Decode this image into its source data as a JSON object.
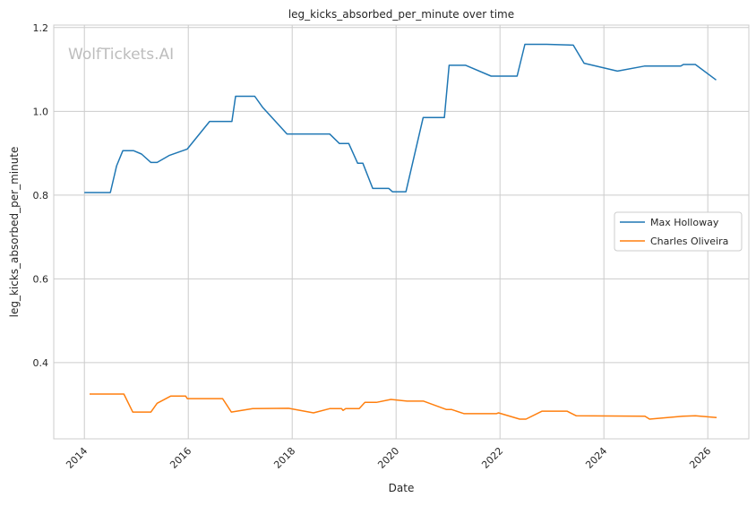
{
  "chart_data": {
    "type": "line",
    "title": "leg_kicks_absorbed_per_minute over time",
    "xlabel": "Date",
    "ylabel": "leg_kicks_absorbed_per_minute",
    "xlim": [
      2013.41,
      2026.79
    ],
    "ylim": [
      0.218,
      1.206
    ],
    "x_ticks": [
      2014,
      2016,
      2018,
      2020,
      2022,
      2024,
      2026
    ],
    "x_tick_labels": [
      "2014",
      "2016",
      "2018",
      "2020",
      "2022",
      "2024",
      "2026"
    ],
    "y_ticks": [
      0.4,
      0.6,
      0.8,
      1.0,
      1.2
    ],
    "y_tick_labels": [
      "0.4",
      "0.6",
      "0.8",
      "1.0",
      "1.2"
    ],
    "grid": true,
    "legend_position": "center-right",
    "watermark": "WolfTickets.AI",
    "series": [
      {
        "name": "Max Holloway",
        "color": "#1f77b4",
        "x": [
          2014.0,
          2014.5,
          2014.62,
          2014.74,
          2014.95,
          2015.1,
          2015.28,
          2015.4,
          2015.64,
          2015.98,
          2016.41,
          2016.84,
          2016.91,
          2017.28,
          2017.43,
          2017.9,
          2018.72,
          2018.91,
          2019.09,
          2019.26,
          2019.36,
          2019.55,
          2019.86,
          2019.93,
          2020.19,
          2020.52,
          2020.93,
          2021.02,
          2021.34,
          2021.83,
          2022.33,
          2022.48,
          2022.9,
          2023.41,
          2023.62,
          2024.26,
          2024.78,
          2025.48,
          2025.53,
          2025.76,
          2026.16
        ],
        "y": [
          0.806,
          0.806,
          0.87,
          0.906,
          0.906,
          0.898,
          0.878,
          0.878,
          0.895,
          0.91,
          0.976,
          0.976,
          1.036,
          1.036,
          1.01,
          0.946,
          0.946,
          0.923,
          0.923,
          0.876,
          0.876,
          0.816,
          0.816,
          0.808,
          0.808,
          0.985,
          0.985,
          1.11,
          1.11,
          1.084,
          1.084,
          1.16,
          1.16,
          1.158,
          1.115,
          1.096,
          1.108,
          1.108,
          1.112,
          1.112,
          1.075
        ]
      },
      {
        "name": "Charles Oliveira",
        "color": "#ff7f0e",
        "x": [
          2014.1,
          2014.76,
          2014.93,
          2015.28,
          2015.4,
          2015.66,
          2015.95,
          2015.98,
          2016.66,
          2016.83,
          2017.24,
          2017.93,
          2018.41,
          2018.72,
          2018.95,
          2018.98,
          2019.03,
          2019.29,
          2019.4,
          2019.62,
          2019.9,
          2020.21,
          2020.53,
          2020.97,
          2021.07,
          2021.31,
          2021.93,
          2021.97,
          2022.38,
          2022.5,
          2022.81,
          2023.29,
          2023.47,
          2024.79,
          2024.88,
          2025.52,
          2025.76,
          2026.17
        ],
        "y": [
          0.325,
          0.325,
          0.282,
          0.282,
          0.303,
          0.32,
          0.32,
          0.314,
          0.314,
          0.282,
          0.29,
          0.291,
          0.28,
          0.29,
          0.29,
          0.286,
          0.29,
          0.29,
          0.305,
          0.305,
          0.312,
          0.308,
          0.308,
          0.288,
          0.288,
          0.278,
          0.278,
          0.28,
          0.265,
          0.265,
          0.284,
          0.284,
          0.273,
          0.272,
          0.265,
          0.272,
          0.273,
          0.269
        ]
      }
    ]
  }
}
